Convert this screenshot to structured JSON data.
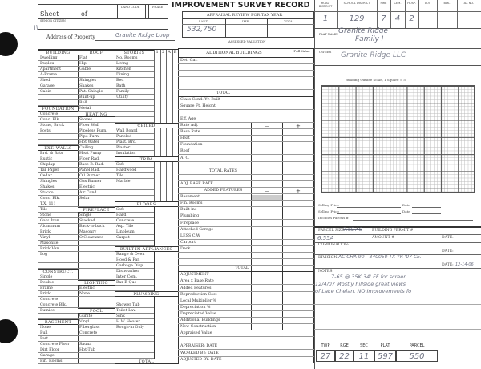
{
  "header": {
    "sheet_label": "Sheet",
    "of_label": "of",
    "senior_citizen_label": "SENIOR CITIZEN",
    "land_code_label": "LAND CODE",
    "phase_label": "PHASE",
    "address_label": "Address of Property",
    "address_value": "Granite Ridge Loop",
    "title": "IMPROVEMENT SURVEY RECORD",
    "appraisal_label": "APPRAISAL REVIEW FOR TAX YEAR",
    "land_label": "LAND",
    "imp_label": "IMP.",
    "total_label": "TOTAL",
    "land_value": "532,750",
    "assessed_label": "ASSESSED VALUATION"
  },
  "left_columns": [
    {
      "name": "building",
      "cells": [
        [
          "BUILDING",
          1
        ],
        "Dwelling",
        "Duplex",
        "Apartment",
        "A-Frame",
        "Shed",
        "Garage",
        "Cabin",
        "",
        "",
        [
          "FOUNDATION",
          1
        ],
        "Concrete",
        "Conc. Blk.",
        "Stone, Brick",
        "Posts",
        "",
        "",
        [
          "EXT. WALLS",
          1
        ],
        "Brd. & Bats",
        "Rustic",
        "Shiplap",
        "Tar Paper",
        "Cedar",
        "Shingles",
        "Shakes",
        "Stucco",
        "Conc. Blk.",
        "T.X. 111",
        "Tile",
        "Stone",
        "Galv. Iron",
        "Aluminum",
        "Brick",
        "Vinyl",
        "Masonite",
        "Brick Ven.",
        "Log",
        "",
        "",
        [
          "CONSTRUCT.",
          1
        ],
        "Single",
        "Double",
        "Frame",
        "Brick",
        "Concrete",
        "Concrete Blk.",
        "Pumice",
        "",
        [
          "BASEMENT",
          1
        ],
        "None",
        "Full",
        "Part",
        "Concrete Floor",
        "Dirt Floor",
        "Garage",
        "Fin. Rooms"
      ]
    },
    {
      "name": "roof",
      "cells": [
        [
          "ROOF",
          1
        ],
        "Flat",
        "Hip",
        "Gable",
        "",
        "Shingles",
        "Shakes",
        "Pat. Shingle",
        "Built-up",
        "Roll",
        "Metal",
        [
          "HEATING",
          1
        ],
        "Stoves",
        "Floor Wall",
        "Pipeless Furn.",
        "Pipe Furn.",
        "Hot Water",
        "Ceiling",
        "Heat Pump",
        "Floor Rad.",
        "Base B. Rad.",
        "Panel Rad.",
        "Oil Burner",
        "Gas Burner",
        "Electric",
        "Air Cond.",
        "Solar",
        "",
        [
          "FIREPLACE",
          1
        ],
        "Single",
        "Stacked",
        "Back-to-back",
        "Masonry",
        "O'Clearance",
        "",
        "",
        "",
        "",
        "",
        "",
        "",
        [
          "LIGHTING",
          1
        ],
        "Electric",
        "None",
        "",
        "",
        [
          "POOL",
          1
        ],
        "Gunite",
        "Vinyl",
        "Fiberglass",
        "Concrete",
        "",
        "Sauna",
        "Hot-Tub",
        "",
        ""
      ]
    },
    {
      "name": "stories",
      "cells": [
        [
          "STORIES",
          1
        ],
        "No. Rooms",
        "Living",
        "Kitchen",
        "Dining",
        "Bed",
        "Bath",
        "Family",
        "Utility",
        "",
        "",
        "",
        "",
        [
          "CEILED",
          1
        ],
        "Wall Board",
        "Paneled",
        "Plast. Brd.",
        "Plaster",
        "Insulation",
        [
          "TRIM",
          1
        ],
        "Soft",
        "Hardwood",
        "Tile",
        "Marble",
        "",
        "",
        "",
        [
          "FLOORS",
          1
        ],
        "Soft",
        "Hard",
        "Concrete",
        "Asp. Tile",
        "Linoleum",
        "Carpet",
        "",
        [
          "BUILT-IN APPLIANCES",
          1
        ],
        "Range & Oven",
        "Hood & Fan",
        "Garbage Disp.",
        "Dishwasher",
        "Inter Com.",
        "Bar-B-Que",
        "",
        [
          "PLUMBING",
          1
        ],
        "",
        "Shower        Tub",
        "Toilet         Lav.",
        "Sink",
        "H.W. Heater",
        "Rough-in Only",
        "",
        "",
        "",
        "",
        "",
        [
          "TOTAL",
          1
        ]
      ]
    }
  ],
  "story_cols": [
    "1",
    "2",
    "A",
    "B"
  ],
  "middle": {
    "additional_buildings": "ADDITIONAL BUILDINGS",
    "full_value": "Full Value",
    "minus": "—",
    "plus": "+",
    "rows": [
      [
        "Det. Gar."
      ],
      [
        ""
      ],
      [
        ""
      ],
      [
        ""
      ],
      [
        ""
      ],
      [
        "TOTAL",
        1
      ],
      [
        "Class          Cond.                    Yr. Built"
      ],
      [
        "Square Ft.                               Height"
      ],
      [
        ""
      ],
      [
        "Eff. Age"
      ],
      [
        "Rate Adj."
      ],
      [
        "Base Rate"
      ],
      [
        "Heat"
      ],
      [
        "Foundation"
      ],
      [
        "Roof"
      ],
      [
        "A. C."
      ],
      [
        ""
      ],
      [
        "TOTAL RATES",
        1
      ],
      [
        ""
      ],
      [
        "ADJ. BASE RATE"
      ],
      [
        "ADDED FEATURES",
        1
      ],
      [
        "Basement"
      ],
      [
        "Fin. Rooms"
      ],
      [
        "Built-ins"
      ],
      [
        "Plumbing"
      ],
      [
        "Fireplace"
      ],
      [
        "Attached Garage"
      ],
      [
        "LESS C.W."
      ],
      [
        "Carport"
      ],
      [
        "Deck"
      ],
      [
        ""
      ],
      [
        ""
      ],
      [
        "TOTAL",
        2
      ],
      [
        "ADJUSTMENT"
      ],
      [
        "Area          x Base Rate"
      ],
      [
        "Added Features"
      ],
      [
        "Reproduction Cost"
      ],
      [
        "Local Multiplier                            %"
      ],
      [
        "Depreciation                                  %"
      ],
      [
        "Depreciated Value"
      ],
      [
        "Additional Buildings"
      ],
      [
        "New Construction"
      ],
      [
        "Appraised Value"
      ],
      [
        ""
      ],
      [
        "APPRAISER:                  DATE"
      ],
      [
        "WORKED BY:                 DATE"
      ],
      [
        "ADJUSTED BY:              DATE"
      ]
    ]
  },
  "right": {
    "district_headers": [
      "ROAD DISTRICT",
      "SCHOOL DISTRICT",
      "FIRE",
      "CEM.",
      "HOSP.",
      "LOT",
      "BLK.",
      "TAX NO."
    ],
    "district_values": [
      "1",
      "129",
      "7",
      "4",
      "2",
      "",
      "",
      ""
    ],
    "plat_label": "PLAT NAME",
    "plat_value_1": "Granite Ridge",
    "plat_value_2": "Family I",
    "owner_label": "OWNER",
    "owner_value": "Granite Ridge LLC",
    "outline_label": "Building Outline   Scale, 1 Square = 5'",
    "selling_price_label": "Selling Price",
    "date_label": "Date",
    "includes_parcels_label": "Includes Parcels #",
    "parcel_size_label": "PARCEL SIZE",
    "parcel_size_struck": "7.65 AC",
    "parcel_size_value": "6.55A",
    "building_permit_label": "BUILDING PERMIT #",
    "amount_label": "AMOUNT #",
    "date_caps": "DATE:",
    "combination_label": "COMBINATION:",
    "division_label": "DIVISION:",
    "division_value": "AC CHA 90 - 840050  TX YR '07 CE.",
    "division_date": "12-14-06",
    "notes_label": "NOTES:",
    "notes": [
      "7-65 @ 35K     34' FF    for screen",
      "12/4/07 Mostly hillside great views",
      "of Lake Chelan.  NO Improvements fo"
    ],
    "twp_headers": [
      "TWP",
      "RGE",
      "SEC",
      "PLAT",
      "PARCEL"
    ],
    "twp_values": [
      "27",
      "22",
      "11",
      "597",
      "550"
    ]
  }
}
